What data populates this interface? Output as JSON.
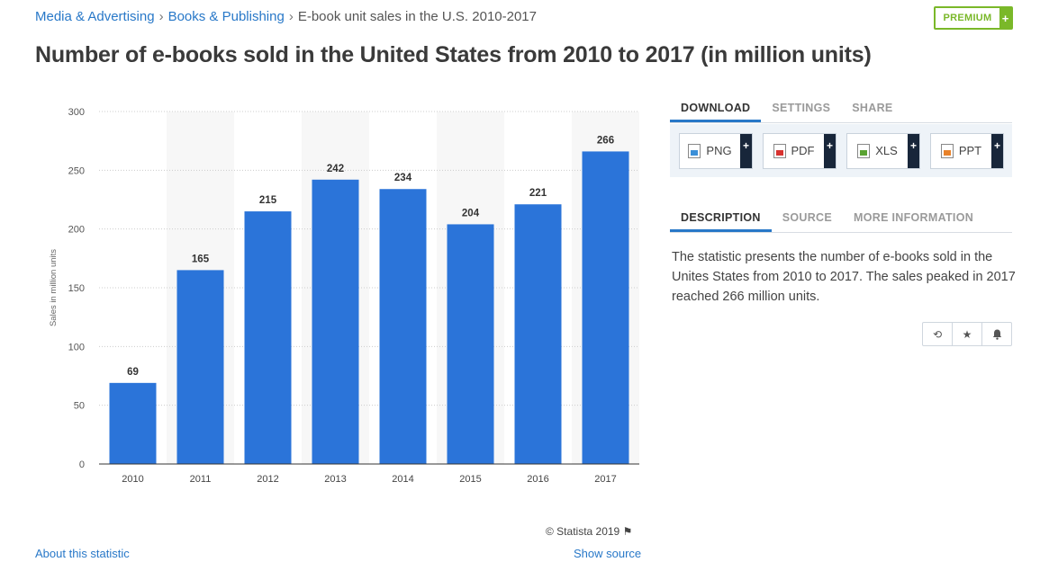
{
  "breadcrumb": {
    "item1": "Media & Advertising",
    "item2": "Books & Publishing",
    "current": "E-book unit sales in the U.S. 2010-2017",
    "separator": "›"
  },
  "premium": {
    "label": "PREMIUM",
    "plus": "+"
  },
  "page_title": "Number of e-books sold in the United States from 2010 to 2017 (in million units)",
  "chart_data": {
    "type": "bar",
    "categories": [
      "2010",
      "2011",
      "2012",
      "2013",
      "2014",
      "2015",
      "2016",
      "2017"
    ],
    "values": [
      69,
      165,
      215,
      242,
      234,
      204,
      221,
      266
    ],
    "data_labels": [
      "69",
      "165",
      "215",
      "242",
      "234",
      "204",
      "221",
      "266"
    ],
    "ylabel": "Sales in million units",
    "ylim": [
      0,
      300
    ],
    "yticks": [
      "0",
      "50",
      "100",
      "150",
      "200",
      "250",
      "300"
    ],
    "grid": true,
    "bar_color": "#2b74d9",
    "alternate_band_color": "#f7f7f7"
  },
  "copyright": "© Statista 2019",
  "footer": {
    "about": "About this statistic",
    "show_source": "Show source"
  },
  "tabs_top": [
    "DOWNLOAD",
    "SETTINGS",
    "SHARE"
  ],
  "downloads": [
    {
      "label": "PNG",
      "icon": "png-file-icon",
      "color": "#3a8fd8"
    },
    {
      "label": "PDF",
      "icon": "pdf-file-icon",
      "color": "#d8322f"
    },
    {
      "label": "XLS",
      "icon": "xls-file-icon",
      "color": "#5aa332"
    },
    {
      "label": "PPT",
      "icon": "ppt-file-icon",
      "color": "#e8822a"
    }
  ],
  "download_plus": "+",
  "tabs_desc": [
    "DESCRIPTION",
    "SOURCE",
    "MORE INFORMATION"
  ],
  "description": "The statistic presents the number of e-books sold in the Unites States from 2010 to 2017. The sales peaked in 2017 reached 266 million units.",
  "actions": [
    "history-icon",
    "star-icon",
    "bell-icon"
  ],
  "colors": {
    "link": "#2878c8",
    "premium": "#7ab829",
    "accent_tab": "#2878c8"
  }
}
